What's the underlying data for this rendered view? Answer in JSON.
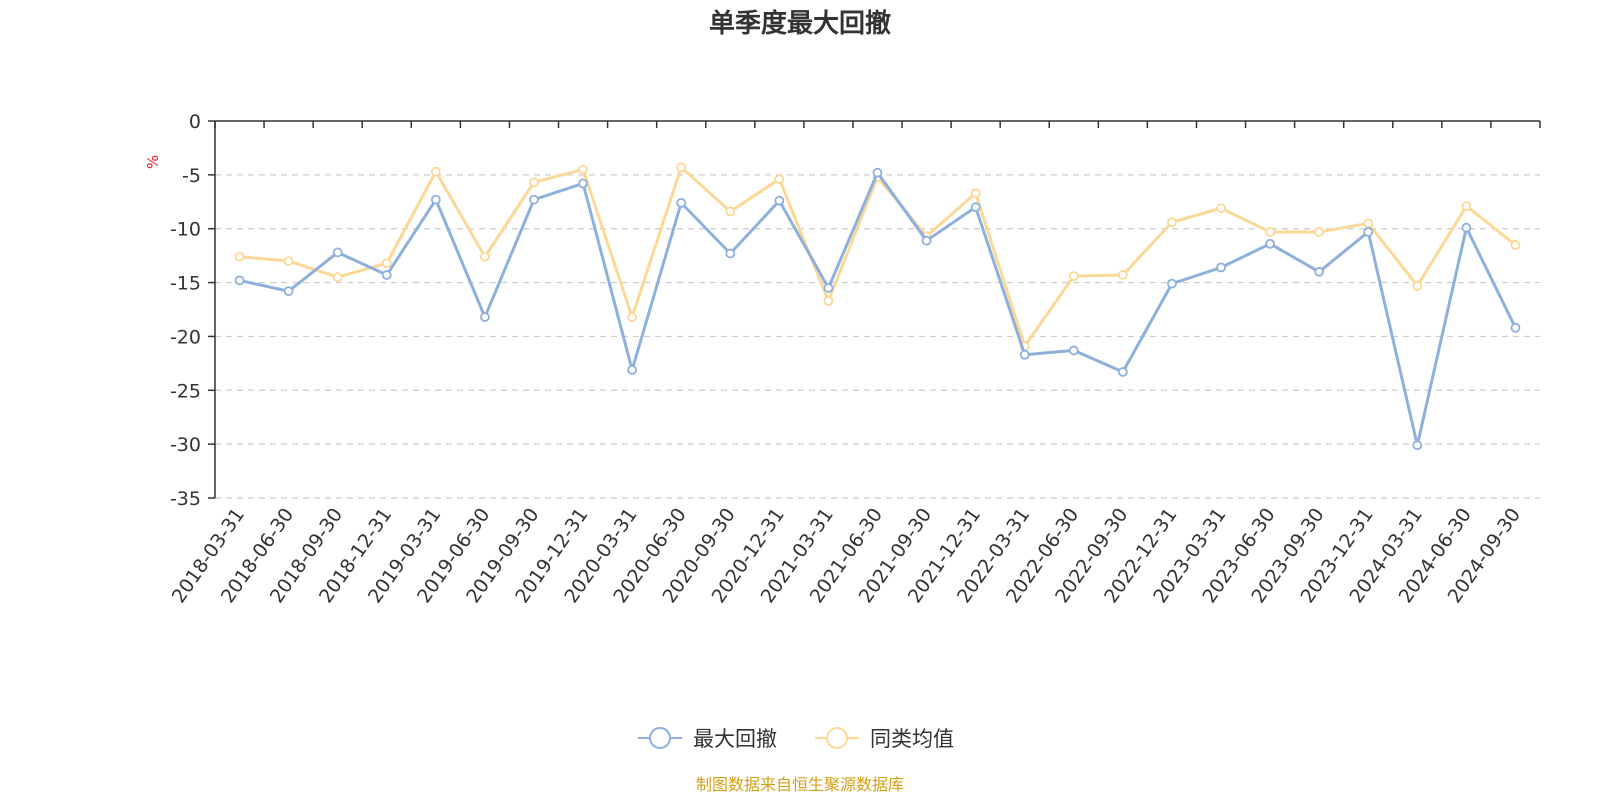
{
  "chart_data": {
    "type": "line",
    "title": "单季度最大回撤",
    "ylabel": "%",
    "xlabel": "",
    "ylim": [
      -35,
      0
    ],
    "yticks": [
      0,
      -5,
      -10,
      -15,
      -20,
      -25,
      -30,
      -35
    ],
    "grid": true,
    "legend_position": "bottom-center",
    "categories": [
      "2018-03-31",
      "2018-06-30",
      "2018-09-30",
      "2018-12-31",
      "2019-03-31",
      "2019-06-30",
      "2019-09-30",
      "2019-12-31",
      "2020-03-31",
      "2020-06-30",
      "2020-09-30",
      "2020-12-31",
      "2021-03-31",
      "2021-06-30",
      "2021-09-30",
      "2021-12-31",
      "2022-03-31",
      "2022-06-30",
      "2022-09-30",
      "2022-12-31",
      "2023-03-31",
      "2023-06-30",
      "2023-09-30",
      "2023-12-31",
      "2024-03-31",
      "2024-06-30",
      "2024-09-30"
    ],
    "series": [
      {
        "name": "最大回撤",
        "color": "#8eb0dc",
        "values": [
          -14.8,
          -15.8,
          -12.2,
          -14.3,
          -7.3,
          -18.2,
          -7.3,
          -5.8,
          -23.1,
          -7.6,
          -12.3,
          -7.4,
          -15.5,
          -4.8,
          -11.1,
          -8.0,
          -21.7,
          -21.3,
          -23.3,
          -15.1,
          -13.6,
          -11.4,
          -14.0,
          -10.3,
          -30.1,
          -9.9,
          -19.2
        ]
      },
      {
        "name": "同类均值",
        "color": "#fbd896",
        "values": [
          -12.6,
          -13.0,
          -14.5,
          -13.2,
          -4.7,
          -12.6,
          -5.7,
          -4.5,
          -18.2,
          -4.3,
          -8.4,
          -5.4,
          -16.7,
          -5.2,
          -10.7,
          -6.7,
          -20.9,
          -14.4,
          -14.3,
          -9.4,
          -8.1,
          -10.3,
          -10.3,
          -9.5,
          -15.3,
          -7.9,
          -11.5
        ]
      }
    ]
  },
  "source_text": "制图数据来自恒生聚源数据库",
  "colors": {
    "axis": "#333333",
    "grid": "#cccccc",
    "unit": "#e02020",
    "source": "#d4a017"
  }
}
